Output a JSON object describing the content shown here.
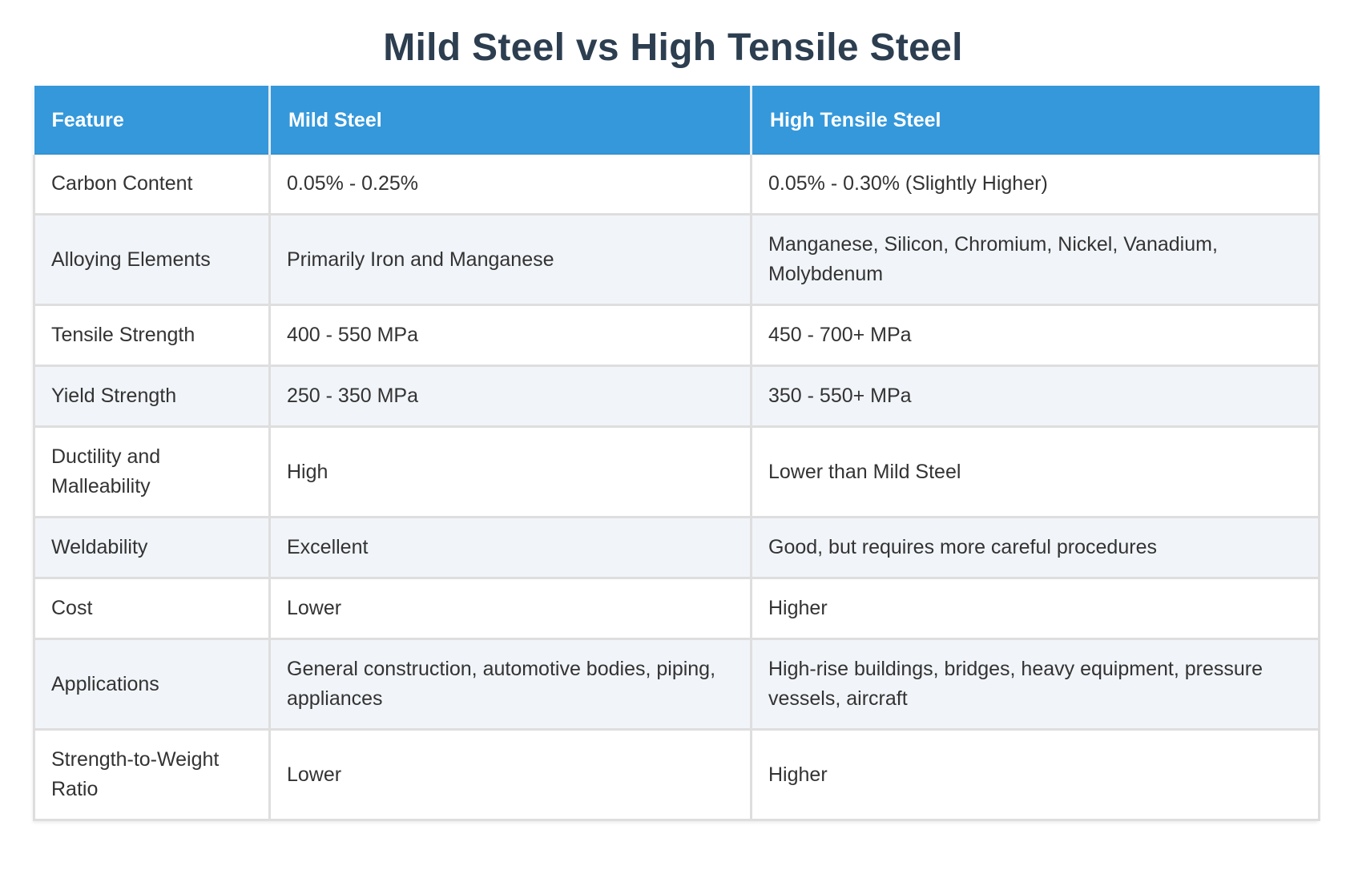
{
  "title": "Mild Steel vs High Tensile Steel",
  "table": {
    "headers": [
      "Feature",
      "Mild Steel",
      "High Tensile Steel"
    ],
    "rows": [
      [
        "Carbon Content",
        "0.05% - 0.25%",
        "0.05% - 0.30% (Slightly Higher)"
      ],
      [
        "Alloying Elements",
        "Primarily Iron and Manganese",
        "Manganese, Silicon, Chromium, Nickel, Vanadium, Molybdenum"
      ],
      [
        "Tensile Strength",
        "400 - 550 MPa",
        "450 - 700+ MPa"
      ],
      [
        "Yield Strength",
        "250 - 350 MPa",
        "350 - 550+ MPa"
      ],
      [
        "Ductility and Malleability",
        "High",
        "Lower than Mild Steel"
      ],
      [
        "Weldability",
        "Excellent",
        "Good, but requires more careful procedures"
      ],
      [
        "Cost",
        "Lower",
        "Higher"
      ],
      [
        "Applications",
        "General construction, automotive bodies, piping, appliances",
        "High-rise buildings, bridges, heavy equipment, pressure vessels, aircraft"
      ],
      [
        "Strength-to-Weight Ratio",
        "Lower",
        "Higher"
      ]
    ]
  },
  "colors": {
    "title": "#2c3e50",
    "header_bg": "#3498db",
    "header_text": "#ffffff",
    "row_alt_bg": "#f1f4f8",
    "border": "#dedede"
  }
}
